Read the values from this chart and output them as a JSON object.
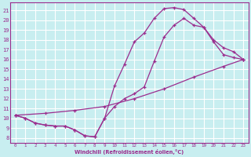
{
  "xlabel": "Windchill (Refroidissement éolien,°C)",
  "bg_color": "#c8eef0",
  "line_color": "#9b2d8e",
  "grid_color": "#ffffff",
  "xlim": [
    -0.5,
    23.5
  ],
  "ylim": [
    7.5,
    21.8
  ],
  "xticks": [
    0,
    1,
    2,
    3,
    4,
    5,
    6,
    7,
    8,
    9,
    10,
    11,
    12,
    13,
    14,
    15,
    16,
    17,
    18,
    19,
    20,
    21,
    22,
    23
  ],
  "yticks": [
    8,
    9,
    10,
    11,
    12,
    13,
    14,
    15,
    16,
    17,
    18,
    19,
    20,
    21
  ],
  "line1_x": [
    0,
    1,
    2,
    3,
    4,
    5,
    6,
    7,
    8,
    9,
    10,
    11,
    12,
    13,
    14,
    15,
    16,
    17,
    18,
    19,
    20,
    21,
    22,
    23
  ],
  "line1_y": [
    10.3,
    10.0,
    9.5,
    9.3,
    9.2,
    9.2,
    8.8,
    8.2,
    8.1,
    10.0,
    13.3,
    15.5,
    17.8,
    18.7,
    20.2,
    21.2,
    21.3,
    21.1,
    20.2,
    19.3,
    17.8,
    16.5,
    16.2,
    16.0
  ],
  "line2_x": [
    0,
    1,
    2,
    3,
    4,
    5,
    6,
    7,
    8,
    9,
    10,
    11,
    12,
    13,
    14,
    15,
    16,
    17,
    18,
    19,
    20,
    21,
    22,
    23
  ],
  "line2_y": [
    10.3,
    10.0,
    9.5,
    9.3,
    9.2,
    9.2,
    8.8,
    8.2,
    8.1,
    10.0,
    11.2,
    12.0,
    12.5,
    13.2,
    15.8,
    18.3,
    19.5,
    20.2,
    19.5,
    19.3,
    18.0,
    17.2,
    16.8,
    16.0
  ],
  "line3_x": [
    0,
    3,
    6,
    9,
    12,
    15,
    18,
    21,
    23
  ],
  "line3_y": [
    10.3,
    10.5,
    10.8,
    11.2,
    12.0,
    13.0,
    14.2,
    15.3,
    16.0
  ]
}
